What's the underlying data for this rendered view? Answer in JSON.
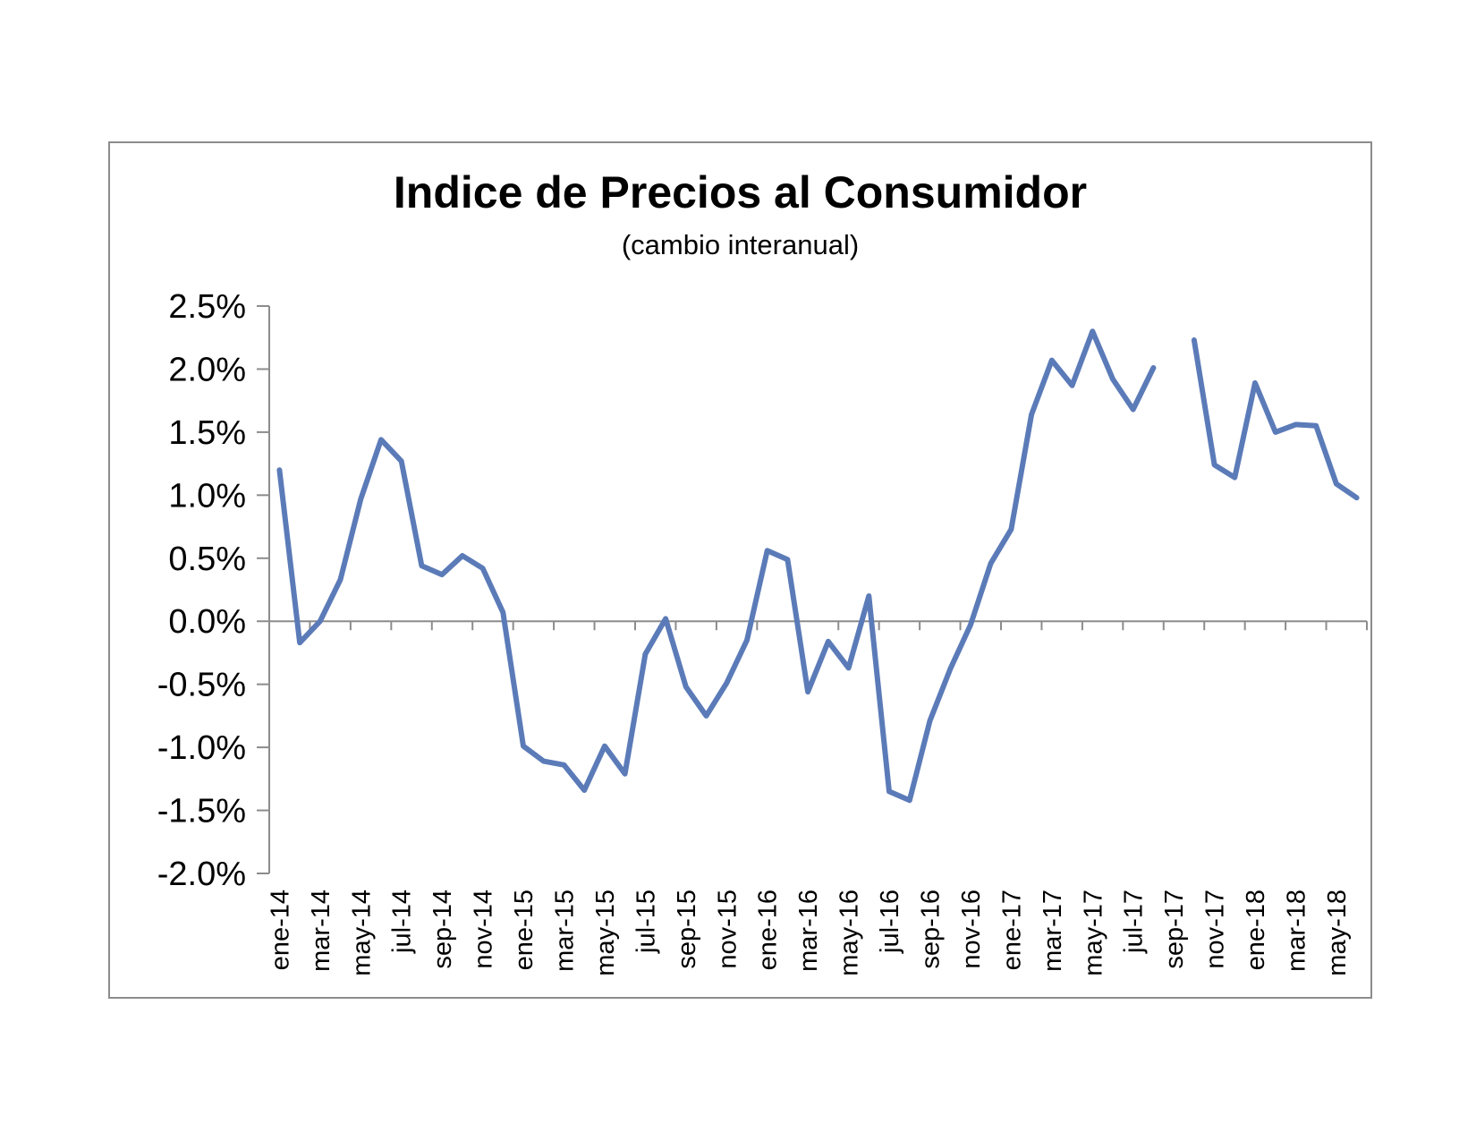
{
  "chart_data": {
    "type": "line",
    "title": "Indice de Precios al Consumidor",
    "subtitle": "(cambio interanual)",
    "xlabel": "",
    "ylabel": "",
    "ylim": [
      -0.02,
      0.025
    ],
    "y_ticks": [
      "2.5%",
      "2.0%",
      "1.5%",
      "1.0%",
      "0.5%",
      "0.0%",
      "-0.5%",
      "-1.0%",
      "-1.5%",
      "-2.0%"
    ],
    "y_tick_values": [
      0.025,
      0.02,
      0.015,
      0.01,
      0.005,
      0.0,
      -0.005,
      -0.01,
      -0.015,
      -0.02
    ],
    "x_tick_labels": [
      "ene-14",
      "mar-14",
      "may-14",
      "jul-14",
      "sep-14",
      "nov-14",
      "ene-15",
      "mar-15",
      "may-15",
      "jul-15",
      "sep-15",
      "nov-15",
      "ene-16",
      "mar-16",
      "may-16",
      "jul-16",
      "sep-16",
      "nov-16",
      "ene-17",
      "mar-17",
      "may-17",
      "jul-17",
      "sep-17",
      "nov-17",
      "ene-18",
      "mar-18",
      "may-18"
    ],
    "categories": [
      "ene-14",
      "feb-14",
      "mar-14",
      "abr-14",
      "may-14",
      "jun-14",
      "jul-14",
      "ago-14",
      "sep-14",
      "oct-14",
      "nov-14",
      "dic-14",
      "ene-15",
      "feb-15",
      "mar-15",
      "abr-15",
      "may-15",
      "jun-15",
      "jul-15",
      "ago-15",
      "sep-15",
      "oct-15",
      "nov-15",
      "dic-15",
      "ene-16",
      "feb-16",
      "mar-16",
      "abr-16",
      "may-16",
      "jun-16",
      "jul-16",
      "ago-16",
      "sep-16",
      "oct-16",
      "nov-16",
      "dic-16",
      "ene-17",
      "feb-17",
      "mar-17",
      "abr-17",
      "may-17",
      "jun-17",
      "jul-17",
      "ago-17",
      "sep-17",
      "oct-17",
      "nov-17",
      "dic-17",
      "ene-18",
      "feb-18",
      "mar-18",
      "abr-18",
      "may-18",
      "jun-18"
    ],
    "series": [
      {
        "color": "#5b7bb8",
        "values": [
          0.012,
          -0.0017,
          0.0,
          0.0033,
          0.0097,
          0.0144,
          0.0127,
          0.0044,
          0.0037,
          0.0052,
          0.0042,
          0.0007,
          -0.0099,
          -0.0111,
          -0.0114,
          -0.0134,
          -0.0099,
          -0.0121,
          -0.0026,
          0.0002,
          -0.0052,
          -0.0075,
          -0.0049,
          -0.0015,
          0.0056,
          0.0049,
          -0.0056,
          -0.0016,
          -0.0037,
          0.002,
          -0.0135,
          -0.0142,
          -0.0079,
          -0.0038,
          -0.0003,
          0.0046,
          0.0073,
          0.0164,
          0.0207,
          0.0187,
          0.023,
          0.0192,
          0.0168,
          0.0201,
          null,
          0.0223,
          0.0124,
          0.0114,
          0.0189,
          0.015,
          0.0156,
          0.0155,
          0.0109,
          0.0098
        ]
      }
    ],
    "grid": false,
    "legend": "none"
  }
}
